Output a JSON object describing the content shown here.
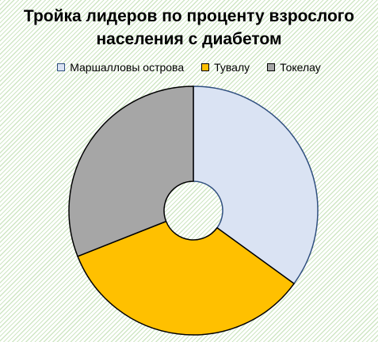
{
  "chart_data": {
    "type": "pie",
    "title": "Тройка лидеров по проценту взрослого населения с диабетом",
    "title_lines": [
      "Тройка лидеров по проценту взрослого",
      "населения с диабетом"
    ],
    "legend_position": "top",
    "categories": [
      "Маршалловы  острова",
      "Тувалу",
      "Токелау"
    ],
    "values": [
      35,
      34,
      31
    ],
    "colors": [
      "#dae3f3",
      "#ffc000",
      "#a6a6a6"
    ],
    "border_colors": [
      "#2f4f7f",
      "#000000",
      "#000000"
    ],
    "donut": true
  }
}
